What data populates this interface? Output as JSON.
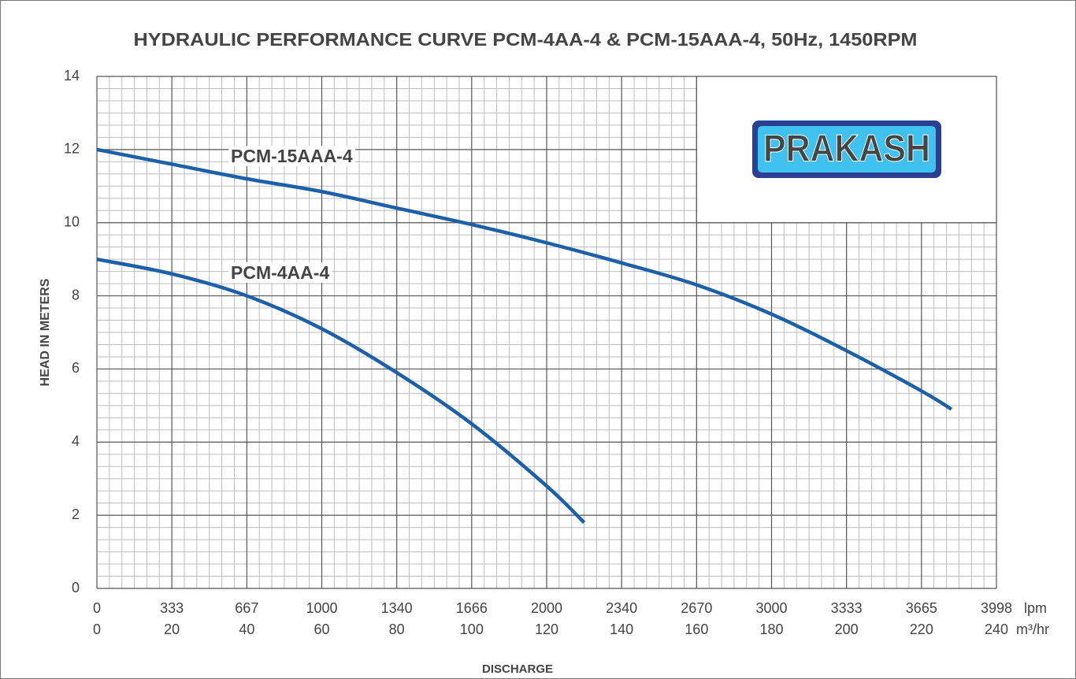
{
  "chart_data": {
    "type": "line",
    "title": "HYDRAULIC PERFORMANCE CURVE PCM-4AA-4 & PCM-15AAA-4, 50Hz, 1450RPM",
    "y_label": "HEAD IN METERS",
    "x_label": "DISCHARGE",
    "x_unit_lpm": "lpm",
    "x_unit": "m³/hr",
    "logo": "PRAKASH",
    "xlim": [
      0,
      240
    ],
    "ylim": [
      0,
      14
    ],
    "xticks": [
      0,
      20,
      40,
      60,
      80,
      100,
      120,
      140,
      160,
      180,
      200,
      220,
      240
    ],
    "xticks_lpm": [
      0,
      333,
      667,
      1000,
      1340,
      1666,
      2000,
      2340,
      2670,
      3000,
      3333,
      3665,
      3998
    ],
    "yticks": [
      0,
      2,
      4,
      6,
      8,
      10,
      12,
      14
    ],
    "grid": true,
    "minor_divisions": 6,
    "series": [
      {
        "name": "PCM-15AAA-4",
        "color": "#1b60a9",
        "x": [
          0,
          20,
          40,
          60,
          80,
          100,
          120,
          140,
          160,
          180,
          200,
          220,
          228
        ],
        "values": [
          12,
          11.6,
          11.2,
          10.85,
          10.4,
          9.95,
          9.45,
          8.9,
          8.3,
          7.5,
          6.5,
          5.4,
          4.9
        ]
      },
      {
        "name": "PCM-4AA-4",
        "color": "#1b60a9",
        "x": [
          0,
          20,
          40,
          60,
          80,
          100,
          120,
          130
        ],
        "values": [
          9,
          8.6,
          8.0,
          7.1,
          5.9,
          4.5,
          2.8,
          1.8
        ]
      }
    ]
  }
}
